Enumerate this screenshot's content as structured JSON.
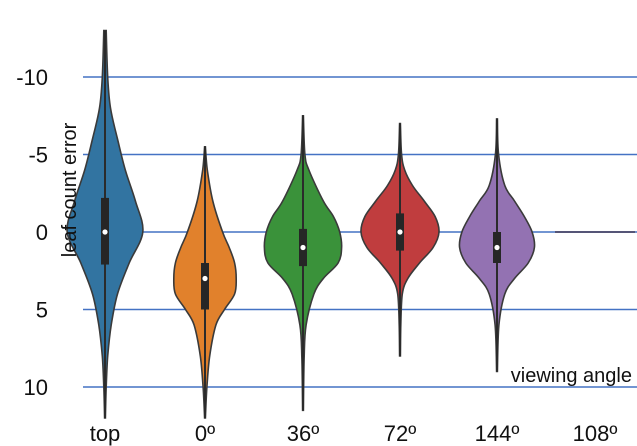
{
  "chart_data": {
    "type": "violin",
    "ylabel": "leaf count error",
    "xlabel": "viewing angle",
    "y_inverted": true,
    "ylim": [
      -13,
      12
    ],
    "yticks": [
      -10,
      -5,
      0,
      5,
      10
    ],
    "ytick_labels": [
      "-10",
      "-5",
      "0",
      "5",
      "10"
    ],
    "grid_y": true,
    "grid_color": "#4472C4",
    "categories": [
      "top",
      "0º",
      "36º",
      "72º",
      "144º",
      "108º"
    ],
    "series": [
      {
        "category": "top",
        "color": "#3274A1",
        "min": -13,
        "max": 12,
        "q1": -2.2,
        "median": 0,
        "q3": 2.1,
        "density_y": [
          -13,
          -10,
          -8,
          -6,
          -4,
          -2,
          0,
          2,
          4,
          6,
          8,
          10,
          12
        ],
        "density_w": [
          0.03,
          0.07,
          0.14,
          0.32,
          0.52,
          0.78,
          0.97,
          0.62,
          0.32,
          0.16,
          0.07,
          0.03,
          0.01
        ]
      },
      {
        "category": "0º",
        "color": "#E1812C",
        "min": -5.5,
        "max": 12,
        "q1": 2.0,
        "median": 3.0,
        "q3": 5.0,
        "density_y": [
          -5.5,
          -4,
          -2,
          0,
          1,
          2,
          3,
          4,
          5,
          6,
          8,
          10,
          12
        ],
        "density_w": [
          0.01,
          0.06,
          0.2,
          0.45,
          0.62,
          0.76,
          0.8,
          0.76,
          0.5,
          0.28,
          0.12,
          0.05,
          0.01
        ]
      },
      {
        "category": "36º",
        "color": "#3A923A",
        "min": -7.5,
        "max": 11.5,
        "q1": -0.2,
        "median": 1.0,
        "q3": 2.2,
        "density_y": [
          -7.5,
          -5,
          -4,
          -2,
          -1,
          0,
          1,
          2,
          3,
          4,
          6,
          8,
          11.5
        ],
        "density_w": [
          0.01,
          0.05,
          0.15,
          0.52,
          0.78,
          0.94,
          0.99,
          0.9,
          0.52,
          0.28,
          0.08,
          0.03,
          0.01
        ]
      },
      {
        "category": "72º",
        "color": "#C03D3E",
        "min": -7,
        "max": 8,
        "q1": -1.2,
        "median": 0,
        "q3": 1.2,
        "density_y": [
          -7,
          -5,
          -4,
          -3,
          -2,
          -1,
          0,
          1,
          2,
          3,
          4,
          6,
          8
        ],
        "density_w": [
          0.01,
          0.04,
          0.12,
          0.32,
          0.62,
          0.9,
          1.0,
          0.85,
          0.5,
          0.2,
          0.06,
          0.02,
          0.01
        ]
      },
      {
        "category": "144º",
        "color": "#9372B2",
        "min": -7.3,
        "max": 9,
        "q1": 0,
        "median": 1.0,
        "q3": 2.0,
        "density_y": [
          -7.3,
          -5,
          -3,
          -2,
          -1,
          0,
          1,
          2,
          3,
          4,
          6,
          9
        ],
        "density_w": [
          0.01,
          0.04,
          0.2,
          0.45,
          0.7,
          0.9,
          0.96,
          0.8,
          0.45,
          0.2,
          0.05,
          0.01
        ]
      },
      {
        "category": "108º",
        "color": "#845B53",
        "min": 0,
        "max": 0,
        "q1": 0,
        "median": 0,
        "q3": 0,
        "density_y": [],
        "density_w": []
      }
    ]
  }
}
